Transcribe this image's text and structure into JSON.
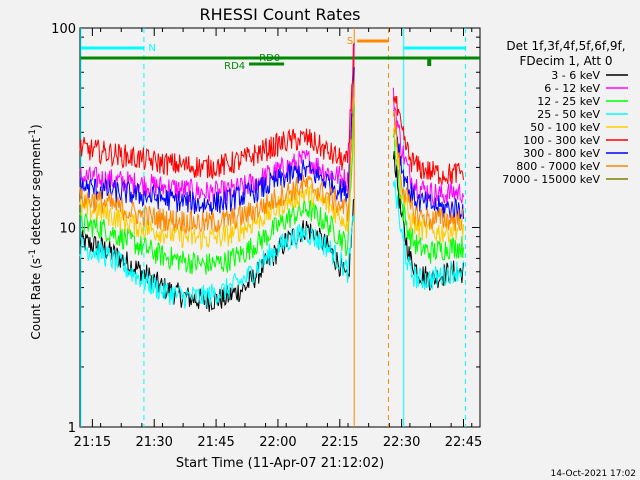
{
  "chart_data": {
    "type": "line",
    "title": "RHESSI Count Rates",
    "xlabel": "Start Time (11-Apr-07 21:12:02)",
    "ylabel": "Count Rate (s⁻¹ detector segment⁻¹)",
    "ylabel_main": "Count Rate (s",
    "ylabel_sup1": "-1",
    "ylabel_mid": " detector segment",
    "ylabel_sup2": "-1",
    "ylabel_end": ")",
    "yscale": "log",
    "ylim": [
      1,
      100
    ],
    "xlim_minutes": [
      0,
      97
    ],
    "ytick_labels": [
      "1",
      "10",
      "100"
    ],
    "xtick_labels": [
      "21:15",
      "21:30",
      "21:45",
      "22:00",
      "22:15",
      "22:30",
      "22:45"
    ],
    "xtick_minutes": [
      3,
      18,
      33,
      48,
      63,
      78,
      93
    ],
    "legend_header": [
      "Det 1f,3f,4f,5f,6f,9f,",
      "FDecim 1, Att 0"
    ],
    "legend_position": "right",
    "footer_date": "14-Oct-2021 17:02",
    "series": [
      {
        "name": "3 - 6 keV",
        "color": "#000000",
        "values_minutes": [
          0,
          5,
          10,
          15,
          20,
          25,
          30,
          35,
          40,
          45,
          50,
          55,
          60,
          63,
          65,
          66.5,
          76,
          78,
          80,
          82,
          85,
          88,
          90,
          93
        ],
        "values": [
          8.5,
          8,
          7,
          6,
          5,
          4.5,
          4.3,
          4.4,
          5,
          6.5,
          8.5,
          10,
          8,
          6.5,
          5.2,
          14,
          25,
          11,
          7,
          6,
          5.5,
          5.8,
          6,
          6
        ]
      },
      {
        "name": "6 - 12 keV",
        "color": "#ff00ff",
        "values_minutes": [
          0,
          5,
          10,
          15,
          20,
          25,
          30,
          35,
          40,
          45,
          50,
          55,
          60,
          63,
          65,
          66.5,
          76,
          78,
          80,
          82,
          85,
          88,
          90,
          93
        ],
        "values": [
          18,
          17.5,
          17,
          16.5,
          16,
          15.5,
          15,
          15,
          16,
          18,
          20,
          22,
          19,
          18,
          17,
          80,
          45,
          25,
          18,
          16,
          15,
          14.5,
          15,
          15
        ]
      },
      {
        "name": "12 - 25 keV",
        "color": "#00ff00",
        "values_minutes": [
          0,
          5,
          10,
          15,
          20,
          25,
          30,
          35,
          40,
          45,
          50,
          55,
          60,
          63,
          65,
          66.5,
          76,
          78,
          80,
          82,
          85,
          88,
          90,
          93
        ],
        "values": [
          10.5,
          10,
          9,
          8,
          7.2,
          6.8,
          6.5,
          6.7,
          7.5,
          9,
          11,
          12.5,
          10.5,
          9,
          8,
          40,
          30,
          13,
          9,
          8,
          7.5,
          7.8,
          8,
          8
        ]
      },
      {
        "name": "25 - 50 keV",
        "color": "#00ffff",
        "values_minutes": [
          0,
          5,
          10,
          15,
          20,
          25,
          30,
          35,
          40,
          45,
          50,
          55,
          60,
          63,
          65,
          66.5,
          76,
          78,
          80,
          82,
          85,
          88,
          90,
          93
        ],
        "values": [
          8,
          7.5,
          6.5,
          5.5,
          4.8,
          4.5,
          4.5,
          4.8,
          5.5,
          7,
          8.5,
          9.5,
          8,
          6.8,
          6,
          12,
          18,
          9,
          6,
          5.5,
          5.5,
          5.8,
          6,
          6.2
        ]
      },
      {
        "name": "50 - 100 keV",
        "color": "#ffcc00",
        "values_minutes": [
          0,
          5,
          10,
          15,
          20,
          25,
          30,
          35,
          40,
          45,
          50,
          55,
          60,
          63,
          65,
          66.5,
          76,
          78,
          80,
          82,
          85,
          88,
          90,
          93
        ],
        "values": [
          12.5,
          12,
          11,
          10,
          9.5,
          9,
          8.8,
          9,
          10,
          11.5,
          13.5,
          15,
          13,
          11.5,
          10.5,
          45,
          35,
          15,
          11,
          10,
          9.5,
          9.5,
          9.8,
          10
        ]
      },
      {
        "name": "100 - 300 keV",
        "color": "#ff0000",
        "values_minutes": [
          0,
          5,
          10,
          15,
          20,
          25,
          30,
          35,
          40,
          45,
          50,
          55,
          60,
          63,
          65,
          66.5,
          76,
          78,
          80,
          82,
          85,
          88,
          90,
          93
        ],
        "values": [
          25,
          24,
          23,
          22,
          21,
          20.5,
          20,
          20.5,
          22,
          24.5,
          27,
          28,
          24,
          22,
          21,
          90,
          48,
          30,
          22,
          20,
          19,
          18.5,
          18.5,
          19
        ]
      },
      {
        "name": "300 - 800 keV",
        "color": "#0000ff",
        "values_minutes": [
          0,
          5,
          10,
          15,
          20,
          25,
          30,
          35,
          40,
          45,
          50,
          55,
          60,
          63,
          65,
          66.5,
          76,
          78,
          80,
          82,
          85,
          88,
          90,
          93
        ],
        "values": [
          16,
          15.5,
          15,
          14.5,
          14,
          13.5,
          13,
          13.5,
          14.5,
          16,
          18,
          19.5,
          17,
          15.5,
          15,
          60,
          40,
          20,
          15,
          13.5,
          13,
          12.5,
          12.5,
          12.5
        ]
      },
      {
        "name": "800 - 7000 keV",
        "color": "#ff8800",
        "values_minutes": [
          0,
          5,
          10,
          15,
          20,
          25,
          30,
          35,
          40,
          45,
          50,
          55,
          60,
          63,
          65,
          66.5,
          76,
          78,
          80,
          82,
          85,
          88,
          90,
          93
        ],
        "values": [
          14,
          13.5,
          12.5,
          11.5,
          11,
          10.8,
          10.5,
          10.8,
          11.5,
          13,
          15,
          16.5,
          14.5,
          13,
          12,
          55,
          38,
          17,
          12.5,
          11.5,
          11,
          11,
          11,
          11
        ]
      },
      {
        "name": "7000 - 15000 keV",
        "color": "#808000",
        "values_minutes": [],
        "values": []
      }
    ],
    "annotations": {
      "N_label": "N",
      "S_label": "S",
      "RD0_label": "RD0",
      "RD4_label": "RD4"
    },
    "colors": {
      "night_cyan": "#00ffff",
      "decim_green": "#008800",
      "saa_orange": "#ff8800",
      "plot_bg": "#f2f2f2"
    }
  }
}
